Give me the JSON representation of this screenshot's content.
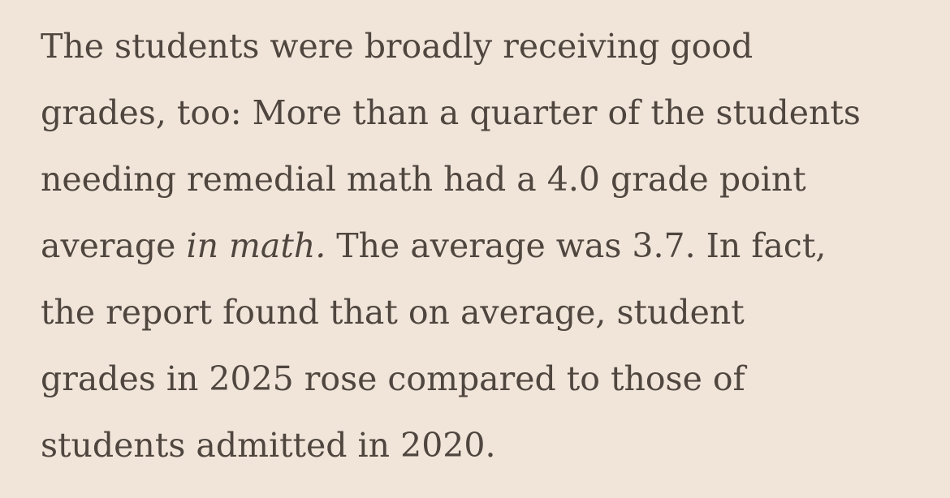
{
  "article": {
    "paragraph": {
      "line_1": "The students were broadly receiving good",
      "line_2": "grades, too: More than a quarter of the students",
      "line_3": "needing remedial math had a 4.0 grade point",
      "line_4_before_emphasis": "average ",
      "line_4_emphasis": "in math.",
      "line_4_after_emphasis": " The average was 3.7. In fact,",
      "line_5": "the report found that on average, student",
      "line_6": "grades in 2025 rose compared to those of",
      "line_7": "students admitted in 2020."
    }
  },
  "colors": {
    "background": "#f1e5d9",
    "text": "#4f463f"
  }
}
